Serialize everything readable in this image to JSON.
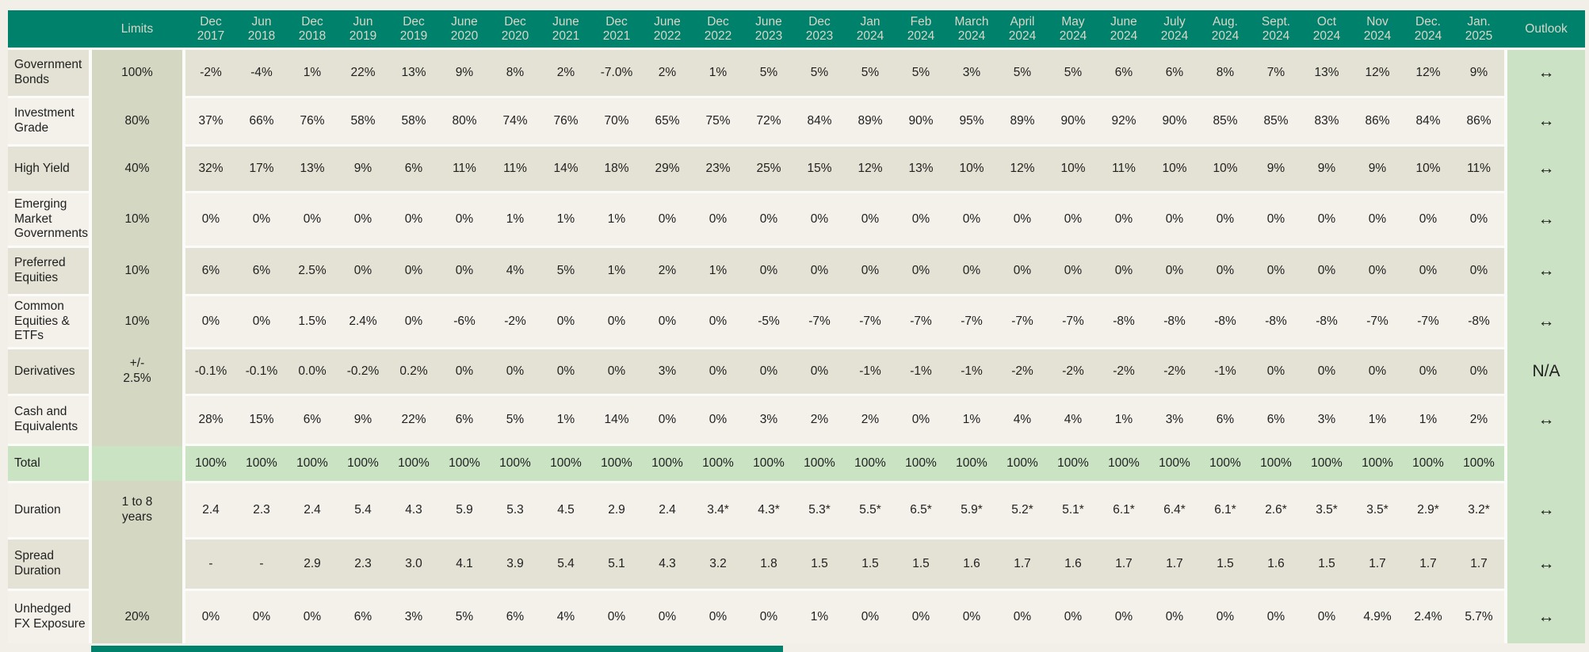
{
  "table": {
    "corner_label": "",
    "limits_header": "Limits",
    "outlook_header": "Outlook",
    "columns": [
      "Dec\n2017",
      "Jun\n2018",
      "Dec\n2018",
      "Jun\n2019",
      "Dec\n2019",
      "June\n2020",
      "Dec\n2020",
      "June\n2021",
      "Dec\n2021",
      "June\n2022",
      "Dec\n2022",
      "June\n2023",
      "Dec\n2023",
      "Jan\n2024",
      "Feb\n2024",
      "March\n2024",
      "April\n2024",
      "May\n2024",
      "June\n2024",
      "July\n2024",
      "Aug.\n2024",
      "Sept.\n2024",
      "Oct\n2024",
      "Nov\n2024",
      "Dec.\n2024",
      "Jan.\n2025"
    ],
    "rows": [
      {
        "label": "Government Bonds",
        "limit": "100%",
        "shade": "dark",
        "values": [
          "-2%",
          "-4%",
          "1%",
          "22%",
          "13%",
          "9%",
          "8%",
          "2%",
          "-7.0%",
          "2%",
          "1%",
          "5%",
          "5%",
          "5%",
          "5%",
          "3%",
          "5%",
          "5%",
          "6%",
          "6%",
          "8%",
          "7%",
          "13%",
          "12%",
          "12%",
          "9%"
        ],
        "outlook": "↔"
      },
      {
        "label": "Investment Grade",
        "limit": "80%",
        "shade": "light",
        "values": [
          "37%",
          "66%",
          "76%",
          "58%",
          "58%",
          "80%",
          "74%",
          "76%",
          "70%",
          "65%",
          "75%",
          "72%",
          "84%",
          "89%",
          "90%",
          "95%",
          "89%",
          "90%",
          "92%",
          "90%",
          "85%",
          "85%",
          "83%",
          "86%",
          "84%",
          "86%"
        ],
        "outlook": "↔"
      },
      {
        "label": "High Yield",
        "limit": "40%",
        "shade": "dark",
        "values": [
          "32%",
          "17%",
          "13%",
          "9%",
          "6%",
          "11%",
          "11%",
          "14%",
          "18%",
          "29%",
          "23%",
          "25%",
          "15%",
          "12%",
          "13%",
          "10%",
          "12%",
          "10%",
          "11%",
          "10%",
          "10%",
          "9%",
          "9%",
          "9%",
          "10%",
          "11%"
        ],
        "outlook": "↔"
      },
      {
        "label": "Emerging Market Governments",
        "limit": "10%",
        "shade": "light",
        "values": [
          "0%",
          "0%",
          "0%",
          "0%",
          "0%",
          "0%",
          "1%",
          "1%",
          "1%",
          "0%",
          "0%",
          "0%",
          "0%",
          "0%",
          "0%",
          "0%",
          "0%",
          "0%",
          "0%",
          "0%",
          "0%",
          "0%",
          "0%",
          "0%",
          "0%",
          "0%"
        ],
        "outlook": "↔"
      },
      {
        "label": "Preferred Equities",
        "limit": "10%",
        "shade": "dark",
        "values": [
          "6%",
          "6%",
          "2.5%",
          "0%",
          "0%",
          "0%",
          "4%",
          "5%",
          "1%",
          "2%",
          "1%",
          "0%",
          "0%",
          "0%",
          "0%",
          "0%",
          "0%",
          "0%",
          "0%",
          "0%",
          "0%",
          "0%",
          "0%",
          "0%",
          "0%",
          "0%"
        ],
        "outlook": "↔"
      },
      {
        "label": "Common Equities & ETFs",
        "limit": "10%",
        "shade": "light",
        "values": [
          "0%",
          "0%",
          "1.5%",
          "2.4%",
          "0%",
          "-6%",
          "-2%",
          "0%",
          "0%",
          "0%",
          "0%",
          "-5%",
          "-7%",
          "-7%",
          "-7%",
          "-7%",
          "-7%",
          "-7%",
          "-8%",
          "-8%",
          "-8%",
          "-8%",
          "-8%",
          "-7%",
          "-7%",
          "-8%"
        ],
        "outlook": "↔"
      },
      {
        "label": "Derivatives",
        "limit": "+/-\n2.5%",
        "shade": "dark",
        "values": [
          "-0.1%",
          "-0.1%",
          "0.0%",
          "-0.2%",
          "0.2%",
          "0%",
          "0%",
          "0%",
          "0%",
          "3%",
          "0%",
          "0%",
          "0%",
          "-1%",
          "-1%",
          "-1%",
          "-2%",
          "-2%",
          "-2%",
          "-2%",
          "-1%",
          "0%",
          "0%",
          "0%",
          "0%",
          "0%"
        ],
        "outlook": "N/A"
      },
      {
        "label": "Cash and Equivalents",
        "limit": "",
        "shade": "light",
        "values": [
          "28%",
          "15%",
          "6%",
          "9%",
          "22%",
          "6%",
          "5%",
          "1%",
          "14%",
          "0%",
          "0%",
          "3%",
          "2%",
          "2%",
          "0%",
          "1%",
          "4%",
          "4%",
          "1%",
          "3%",
          "6%",
          "6%",
          "3%",
          "1%",
          "1%",
          "2%"
        ],
        "outlook": "↔"
      },
      {
        "label": "Total",
        "limit": "",
        "shade": "green",
        "values": [
          "100%",
          "100%",
          "100%",
          "100%",
          "100%",
          "100%",
          "100%",
          "100%",
          "100%",
          "100%",
          "100%",
          "100%",
          "100%",
          "100%",
          "100%",
          "100%",
          "100%",
          "100%",
          "100%",
          "100%",
          "100%",
          "100%",
          "100%",
          "100%",
          "100%",
          "100%"
        ],
        "outlook": ""
      },
      {
        "label": "Duration",
        "limit": "1 to 8\nyears",
        "shade": "light",
        "values": [
          "2.4",
          "2.3",
          "2.4",
          "5.4",
          "4.3",
          "5.9",
          "5.3",
          "4.5",
          "2.9",
          "2.4",
          "3.4*",
          "4.3*",
          "5.3*",
          "5.5*",
          "6.5*",
          "5.9*",
          "5.2*",
          "5.1*",
          "6.1*",
          "6.4*",
          "6.1*",
          "2.6*",
          "3.5*",
          "3.5*",
          "2.9*",
          "3.2*"
        ],
        "outlook": "↔"
      },
      {
        "label": "Spread Duration",
        "limit": "",
        "shade": "dark",
        "values": [
          "-",
          "-",
          "2.9",
          "2.3",
          "3.0",
          "4.1",
          "3.9",
          "5.4",
          "5.1",
          "4.3",
          "3.2",
          "1.8",
          "1.5",
          "1.5",
          "1.5",
          "1.6",
          "1.7",
          "1.6",
          "1.7",
          "1.7",
          "1.5",
          "1.6",
          "1.5",
          "1.7",
          "1.7",
          "1.7"
        ],
        "outlook": "↔"
      },
      {
        "label": "Unhedged FX Exposure",
        "limit": "20%",
        "shade": "light",
        "values": [
          "0%",
          "0%",
          "0%",
          "6%",
          "3%",
          "5%",
          "6%",
          "4%",
          "0%",
          "0%",
          "0%",
          "0%",
          "1%",
          "0%",
          "0%",
          "0%",
          "0%",
          "0%",
          "0%",
          "0%",
          "0%",
          "0%",
          "0%",
          "4.9%",
          "2.4%",
          "5.7%"
        ],
        "outlook": "↔"
      }
    ]
  },
  "icons": {
    "outlook_neutral": "left-right-arrow"
  },
  "colors": {
    "header_teal": "#00816C",
    "header_text": "#D9D6C8",
    "row_dark": "#E4E2D4",
    "row_light": "#F3F1EA",
    "limits_band": "#D4D7C1",
    "total_green": "#C9E3C3",
    "outlook_band": "#CBE2C4",
    "page_background": "#F1EFE8",
    "grid_gap": "#FBFBF9",
    "cell_text": "#212121"
  }
}
